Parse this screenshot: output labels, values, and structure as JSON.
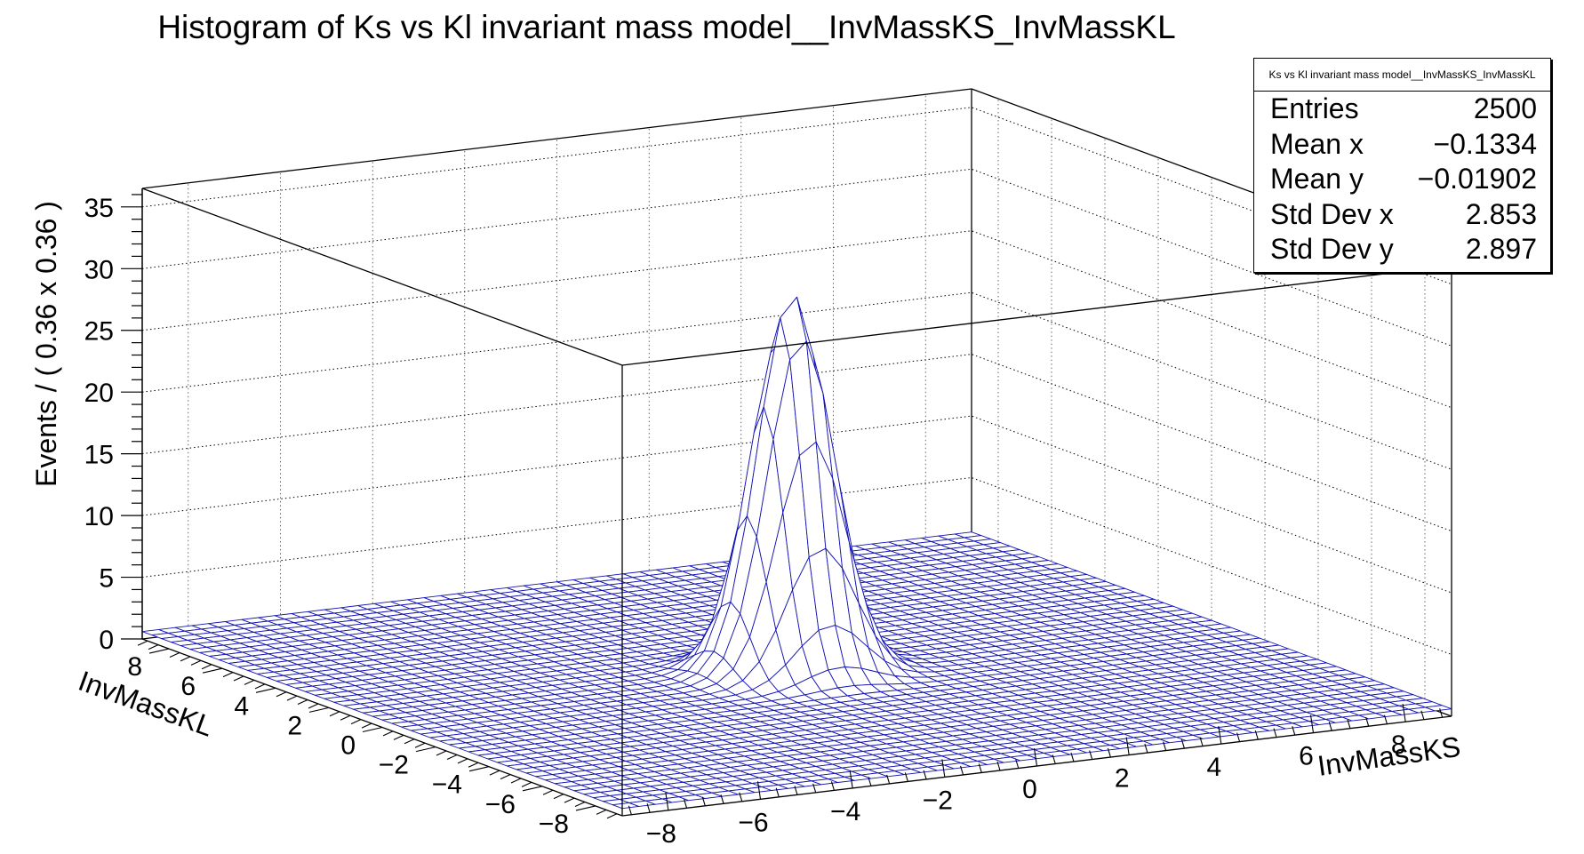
{
  "chart_data": {
    "type": "surface",
    "title": "Histogram of Ks vs Kl invariant mass model__InvMassKS_InvMassKL",
    "xlabel": "InvMassKS",
    "ylabel": "InvMassKL",
    "zlabel": "Events / ( 0.36 x 0.36 )",
    "xlim": [
      -9,
      9
    ],
    "ylim": [
      -9,
      9
    ],
    "zlim": [
      0,
      36.5
    ],
    "x_ticks": [
      "−8",
      "−6",
      "−4",
      "−2",
      "0",
      "2",
      "4",
      "6",
      "8"
    ],
    "y_ticks": [
      "−8",
      "−6",
      "−4",
      "−2",
      "0",
      "2",
      "4",
      "6",
      "8"
    ],
    "z_ticks": [
      "0",
      "5",
      "10",
      "15",
      "20",
      "25",
      "30",
      "35"
    ],
    "grid": true,
    "bins": 50,
    "mesh_color": "#1414b4",
    "peak": {
      "x": -0.1,
      "y": 0.0,
      "z_max": 30.5,
      "sigma_x": 0.75,
      "sigma_y": 0.75
    },
    "stats_box": {
      "header": "Ks vs Kl invariant mass model__InvMassKS_InvMassKL",
      "rows": [
        {
          "label": "Entries",
          "value": "2500"
        },
        {
          "label": "Mean x",
          "value": "−0.1334"
        },
        {
          "label": "Mean y",
          "value": "−0.01902"
        },
        {
          "label": "Std Dev x",
          "value": "2.853"
        },
        {
          "label": "Std Dev y",
          "value": "2.897"
        }
      ]
    }
  }
}
